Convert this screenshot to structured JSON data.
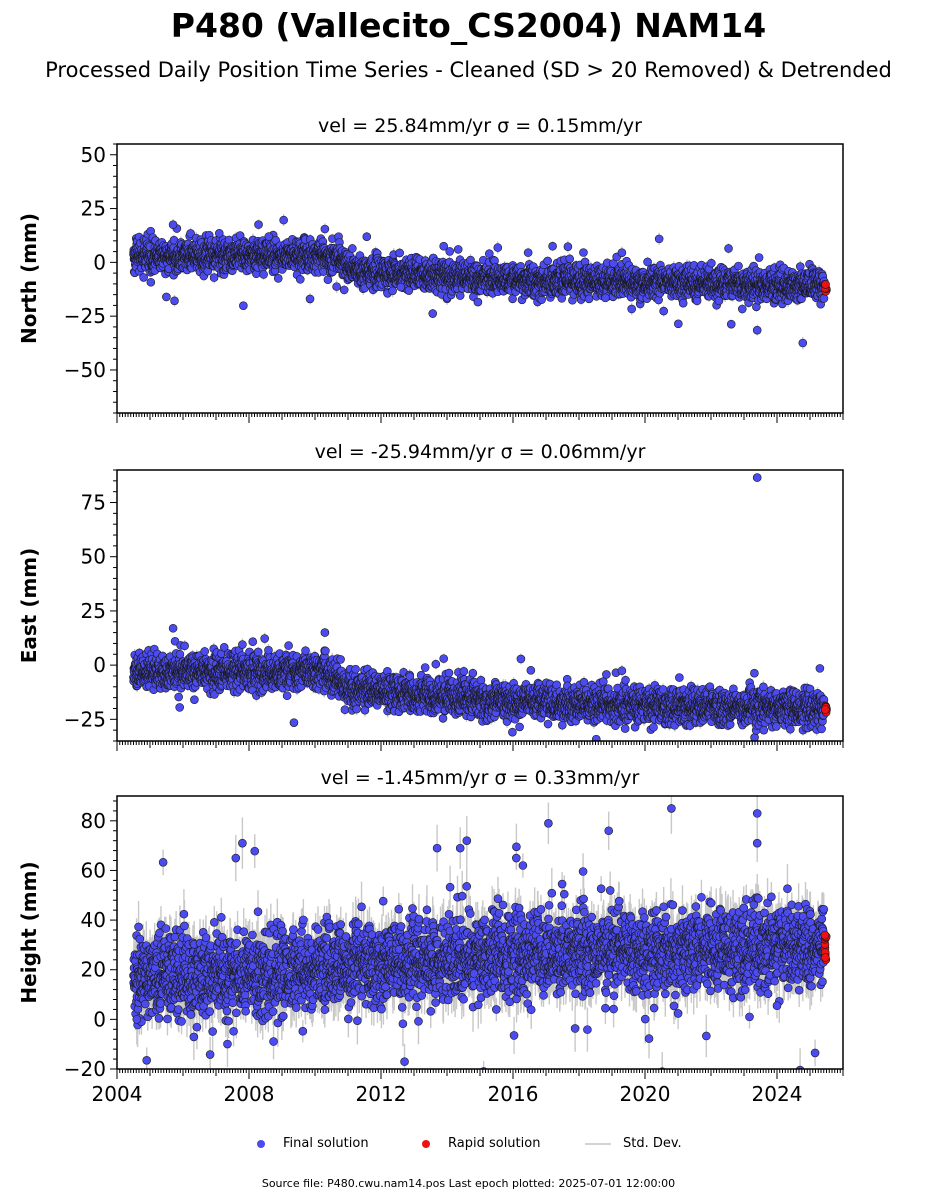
{
  "title": "P480 (Vallecito_CS2004) NAM14",
  "subtitle": "Processed Daily Position Time Series - Cleaned (SD > 20 Removed) & Detrended",
  "footer": "Source file: P480.cwu.nam14.pos  Last epoch plotted: 2025-07-01 12:00:00",
  "legend": {
    "final": "Final solution",
    "rapid": "Rapid solution",
    "std": "Std. Dev."
  },
  "colors": {
    "final": "#4b4bf0",
    "rapid": "#ee1111",
    "std": "#c8c8c8",
    "edge": "#1a1a1a"
  },
  "chart_data": [
    {
      "type": "scatter",
      "panel": "north",
      "title": "vel = 25.84mm/yr   σ = 0.15mm/yr",
      "ylabel": "North (mm)",
      "xlim": [
        2004.0,
        2026.0
      ],
      "ylim": [
        -70,
        55
      ],
      "yticks": [
        -50,
        -25,
        0,
        25,
        50
      ],
      "ytick_labels": [
        "−50",
        "−25",
        "0",
        "25",
        "50"
      ],
      "xticks": [
        2004,
        2008,
        2012,
        2016,
        2020,
        2024
      ],
      "show_xtick_labels": false,
      "grid": false,
      "trend": [
        [
          2004.5,
          3
        ],
        [
          2010.5,
          3
        ],
        [
          2011.3,
          -4
        ],
        [
          2016.0,
          -8
        ],
        [
          2025.5,
          -11
        ]
      ],
      "noise": {
        "sd": 3.5,
        "errbar": 2.0
      },
      "outliers": [
        [
          2005.7,
          17.5
        ],
        [
          2007.1,
          13.5
        ],
        [
          2010.3,
          15.5
        ],
        [
          2013.9,
          7.5
        ],
        [
          2017.2,
          7.5
        ],
        [
          2019.3,
          4.5
        ],
        [
          2023.4,
          -31.5
        ],
        [
          2018.8,
          -16.5
        ],
        [
          2012.6,
          -11.5
        ],
        [
          2008.6,
          12
        ]
      ],
      "rapid": {
        "x_range": [
          2025.45,
          2025.5
        ],
        "y_range": [
          -14,
          -10
        ]
      }
    },
    {
      "type": "scatter",
      "panel": "east",
      "title": "vel = -25.94mm/yr   σ = 0.06mm/yr",
      "ylabel": "East (mm)",
      "xlim": [
        2004.0,
        2026.0
      ],
      "ylim": [
        -35,
        90
      ],
      "yticks": [
        -25,
        0,
        25,
        50,
        75
      ],
      "ytick_labels": [
        "−25",
        "0",
        "25",
        "50",
        "75"
      ],
      "xticks": [
        2004,
        2008,
        2012,
        2016,
        2020,
        2024
      ],
      "show_xtick_labels": false,
      "grid": false,
      "trend": [
        [
          2004.5,
          -3
        ],
        [
          2010.3,
          -3
        ],
        [
          2011.0,
          -11
        ],
        [
          2014.0,
          -15
        ],
        [
          2018.0,
          -18
        ],
        [
          2025.5,
          -20
        ]
      ],
      "noise": {
        "sd": 3.8,
        "errbar": 2.0
      },
      "outliers": [
        [
          2023.4,
          86.5
        ],
        [
          2005.7,
          17
        ],
        [
          2010.3,
          15
        ],
        [
          2005.9,
          -19.5
        ],
        [
          2016.2,
          -28.5
        ],
        [
          2023.6,
          -30
        ],
        [
          2013.9,
          3
        ],
        [
          2025.3,
          -1.5
        ],
        [
          2007.8,
          9.5
        ],
        [
          2009.2,
          9
        ]
      ],
      "rapid": {
        "x_range": [
          2025.45,
          2025.5
        ],
        "y_range": [
          -22,
          -18
        ]
      }
    },
    {
      "type": "scatter",
      "panel": "height",
      "title": "vel = -1.45mm/yr   σ = 0.33mm/yr",
      "ylabel": "Height (mm)",
      "xlim": [
        2004.0,
        2026.0
      ],
      "ylim": [
        -20,
        90
      ],
      "yticks": [
        -20,
        0,
        20,
        40,
        60,
        80
      ],
      "ytick_labels": [
        "−20",
        "0",
        "20",
        "40",
        "60",
        "80"
      ],
      "xticks": [
        2004,
        2008,
        2012,
        2016,
        2020,
        2024
      ],
      "xtick_labels": [
        "2004",
        "2008",
        "2012",
        "2016",
        "2020",
        "2024"
      ],
      "show_xtick_labels": true,
      "grid": false,
      "trend": [
        [
          2004.5,
          17
        ],
        [
          2006.0,
          17
        ],
        [
          2010.0,
          20
        ],
        [
          2014.0,
          24
        ],
        [
          2018.0,
          27
        ],
        [
          2025.5,
          29
        ]
      ],
      "noise": {
        "sd": 8.0,
        "errbar": 7.0
      },
      "outliers": [
        [
          2020.8,
          85
        ],
        [
          2023.4,
          83
        ],
        [
          2023.4,
          71
        ],
        [
          2007.8,
          71
        ],
        [
          2007.6,
          65
        ],
        [
          2018.9,
          76
        ],
        [
          2014.6,
          72
        ],
        [
          2014.4,
          69
        ],
        [
          2013.7,
          69
        ],
        [
          2016.1,
          65
        ],
        [
          2016.3,
          62
        ],
        [
          2004.9,
          -16.5
        ],
        [
          2024.0,
          5.5
        ],
        [
          2018.8,
          4.5
        ],
        [
          2004.6,
          0
        ]
      ],
      "rapid": {
        "x_range": [
          2025.45,
          2025.5
        ],
        "y_range": [
          21,
          34
        ]
      }
    }
  ]
}
